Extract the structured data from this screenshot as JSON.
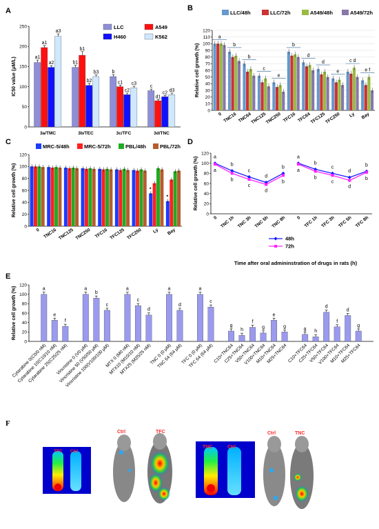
{
  "panel_labels": {
    "a": "A",
    "b": "B",
    "c": "C",
    "d": "D",
    "e": "E",
    "f": "F"
  },
  "chart_data": [
    {
      "id": "A",
      "type": "bar",
      "ylabel": "IC50 value (μM/L)",
      "ylim": [
        0,
        250
      ],
      "yticks": [
        0,
        50,
        100,
        150,
        200,
        250
      ],
      "categories": [
        "3a/TMC",
        "3b/TEC",
        "3c/TFC",
        "3d/TNC"
      ],
      "series": [
        {
          "name": "LLC",
          "color": "#8f8fd8",
          "values": [
            160,
            148,
            125,
            90
          ],
          "err": [
            6,
            5,
            5,
            4
          ]
        },
        {
          "name": "A549",
          "color": "#ff1010",
          "values": [
            197,
            178,
            100,
            65
          ],
          "err": [
            5,
            9,
            4,
            3
          ]
        },
        {
          "name": "H460",
          "color": "#1010ff",
          "values": [
            148,
            103,
            80,
            75
          ],
          "err": [
            4,
            5,
            4,
            3
          ]
        },
        {
          "name": "K562",
          "color": "#cfe8ff",
          "values": [
            225,
            125,
            97,
            80
          ],
          "err": [
            6,
            4,
            4,
            4
          ]
        }
      ],
      "labels": [
        [
          "a1",
          "a1",
          "a2",
          "a3"
        ],
        [
          "b1",
          "b1",
          "b2",
          "b3"
        ],
        [
          "b",
          "c1",
          "c2",
          "c3"
        ],
        [
          "c",
          "d1",
          "c2",
          "d3"
        ]
      ],
      "legend_position": "top-right"
    },
    {
      "id": "B",
      "type": "bar",
      "ylabel": "Relative cell growth (%)",
      "ylim": [
        0,
        120
      ],
      "yticks": [
        0,
        10,
        20,
        30,
        40,
        50,
        60,
        70,
        80,
        90,
        100,
        110,
        120
      ],
      "categories": [
        "0",
        "TNC16",
        "TNC64",
        "TNC125",
        "TNC250",
        "TFC16",
        "TFC64",
        "TFC125",
        "TFC250",
        "Ly",
        "Bay"
      ],
      "series": [
        {
          "name": "LLC/48h",
          "color": "#6699cc",
          "values": [
            100,
            88,
            70,
            52,
            42,
            88,
            72,
            62,
            48,
            58,
            45
          ]
        },
        {
          "name": "LLC/72h",
          "color": "#cc3333",
          "values": [
            100,
            80,
            58,
            42,
            35,
            82,
            66,
            54,
            42,
            55,
            38
          ]
        },
        {
          "name": "A549/48h",
          "color": "#99bb44",
          "values": [
            100,
            82,
            62,
            48,
            38,
            84,
            68,
            58,
            46,
            64,
            50
          ]
        },
        {
          "name": "A549/72h",
          "color": "#8877aa",
          "values": [
            98,
            74,
            52,
            36,
            28,
            80,
            60,
            50,
            38,
            50,
            30
          ]
        }
      ],
      "annotations": [
        "a",
        "b",
        "b",
        "c",
        "e",
        "b",
        "d",
        "d",
        "e",
        "c d",
        "e f"
      ],
      "legend_position": "top"
    },
    {
      "id": "C",
      "type": "bar",
      "ylabel": "Relative cell growth (%)",
      "ylim": [
        0,
        120
      ],
      "yticks": [
        0,
        20,
        40,
        60,
        80,
        100,
        120
      ],
      "categories": [
        "0",
        "TNC16",
        "TNC125",
        "TNC250",
        "TFC16",
        "TFC125",
        "TFC250",
        "Ly",
        "Bay"
      ],
      "series": [
        {
          "name": "MRC-5/48h",
          "color": "#1a3cff",
          "values": [
            100,
            99,
            98,
            97,
            96,
            95,
            94,
            55,
            42
          ]
        },
        {
          "name": "MRC-5/72h",
          "color": "#ff2020",
          "values": [
            100,
            98,
            97,
            96,
            95,
            94,
            93,
            72,
            78
          ]
        },
        {
          "name": "PBL/48h",
          "color": "#22aa22",
          "values": [
            100,
            99,
            98,
            97,
            96,
            96,
            95,
            97,
            92
          ]
        },
        {
          "name": "PBL/72h",
          "color": "#b85c30",
          "values": [
            99,
            98,
            97,
            96,
            95,
            94,
            93,
            95,
            93
          ]
        }
      ],
      "annotations": [
        "",
        "",
        "",
        "",
        "",
        "",
        "",
        "*",
        "*"
      ],
      "legend_position": "top"
    },
    {
      "id": "D",
      "type": "line",
      "ylabel": "Relative cell growth (%)",
      "xlabel": "Time after oral admininstration of drugs in rats (h)",
      "ylim": [
        0,
        120
      ],
      "yticks": [
        0,
        20,
        40,
        60,
        80,
        100,
        120
      ],
      "groups": [
        {
          "categories": [
            "0",
            "TNC 1h",
            "TNC 3h",
            "TNC 5h",
            "TNC 8h"
          ],
          "s48": [
            100,
            85,
            73,
            62,
            80
          ],
          "s72": [
            98,
            80,
            68,
            58,
            76
          ],
          "labels_top": [
            "a",
            "b",
            "c",
            "d",
            "b"
          ],
          "labels_bottom": [
            "a",
            "b",
            "c",
            "d",
            "b"
          ]
        },
        {
          "categories": [
            "0",
            "TFC 1h",
            "TFC 3h",
            "TFC 5h",
            "TFC 8h"
          ],
          "s48": [
            100,
            88,
            80,
            72,
            84
          ],
          "s72": [
            98,
            84,
            76,
            66,
            82
          ],
          "labels_top": [
            "a",
            "b",
            "c",
            "d",
            "b"
          ],
          "labels_bottom": [
            "a",
            "b",
            "c",
            "d",
            "b"
          ]
        }
      ],
      "series": [
        {
          "name": "48h",
          "color": "#1a1aff"
        },
        {
          "name": "72h",
          "color": "#ff22ff"
        }
      ],
      "legend_position": "bottom-center"
    },
    {
      "id": "E",
      "type": "bar",
      "ylabel": "Relative cell growth (%)",
      "ylim": [
        0,
        120
      ],
      "yticks": [
        0,
        20,
        40,
        60,
        80,
        100,
        120
      ],
      "color": "#9a9aee",
      "groups": [
        {
          "categories": [
            "Cytarabine 0(C0/0 nM)",
            "Cytarabine 10(C10/10 nM)",
            "Cytarabine 25(C25/25 nM)"
          ],
          "values": [
            100,
            45,
            32
          ],
          "labels": [
            "a",
            "e",
            "f"
          ]
        },
        {
          "categories": [
            "Vincristine 0 (V0 μM)",
            "Vincristine 50 (V50/50 μM)",
            "Vincristine 100(V100/100 μM)"
          ],
          "values": [
            100,
            92,
            66
          ],
          "labels": [
            "a",
            "b",
            "c"
          ]
        },
        {
          "categories": [
            "MTX 0 (M0 nM)",
            "MTX10 (M10/10 nM)",
            "MTX25 (M25/25 nM)"
          ],
          "values": [
            100,
            76,
            56
          ],
          "labels": [
            "a",
            "c",
            "d"
          ]
        },
        {
          "categories": [
            "TNC 0 (0 μM)",
            "TNC 64 (64 μM)"
          ],
          "values": [
            100,
            66
          ],
          "labels": [
            "a",
            "d"
          ]
        },
        {
          "categories": [
            "TFC 0 (0 μM)",
            "TFC 64 (64 μM)"
          ],
          "values": [
            100,
            73
          ],
          "labels": [
            "a",
            "c"
          ]
        },
        {
          "categories": [
            "C10+TNC64",
            "C25+TNC64",
            "V50+TNC64",
            "V100+TNC64",
            "M10+TNC64",
            "M25+TNC64"
          ],
          "values": [
            22,
            13,
            30,
            18,
            45,
            20
          ],
          "labels": [
            "g",
            "h",
            "f",
            "g",
            "e",
            "g"
          ]
        },
        {
          "categories": [
            "C10+TFC64",
            "C25+TFC64",
            "V50+TFC64",
            "V100+TFC64",
            "M10+TFC64",
            "M25+TFC64"
          ],
          "values": [
            15,
            10,
            62,
            31,
            55,
            22
          ],
          "labels": [
            "g",
            "h",
            "d",
            "f",
            "d",
            "g"
          ]
        }
      ]
    }
  ],
  "panel_f": {
    "left": {
      "tube_labels": [
        "TFC",
        "Ctrl"
      ],
      "mouse_labels": [
        "Ctrl",
        "TFC"
      ]
    },
    "right": {
      "tube_labels": [
        "TNC",
        "Ctrl"
      ],
      "mouse_labels": [
        "Ctrl",
        "TNC"
      ]
    }
  }
}
